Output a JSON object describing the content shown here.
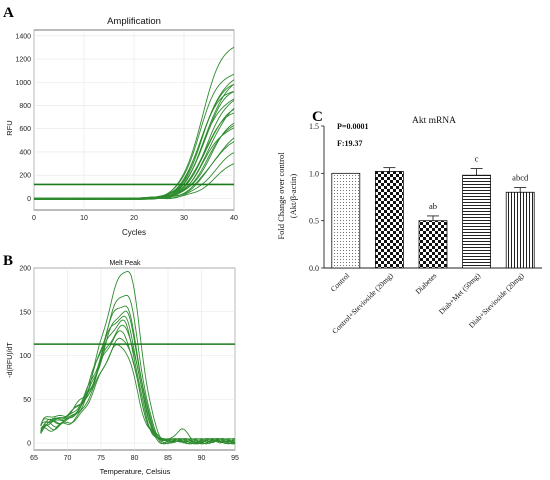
{
  "panels": {
    "A": {
      "letter": "A",
      "title": "Amplification",
      "xlabel": "Cycles",
      "ylabel": "RFU",
      "xticks": [
        "0",
        "10",
        "20",
        "30",
        "40"
      ],
      "yticks": [
        "0",
        "200",
        "400",
        "600",
        "800",
        "1000",
        "1200",
        "1400"
      ]
    },
    "B": {
      "letter": "B",
      "title": "Melt Peak",
      "xlabel": "Temperature, Celsius",
      "ylabel": "-d(RFU)/dT",
      "xticks": [
        "65",
        "70",
        "75",
        "80",
        "85",
        "90",
        "95"
      ],
      "yticks": [
        "0",
        "50",
        "100",
        "150",
        "200"
      ]
    },
    "C": {
      "letter": "C",
      "title": "Akt mRNA",
      "p_value": "P=0.0001",
      "f_value": "F:19.37",
      "ylabel_line1": "Fold Change over control",
      "ylabel_line2": "(Akt/β-actin)",
      "yticks": [
        "0.0",
        "0.5",
        "1.0",
        "1.5"
      ]
    }
  },
  "colors": {
    "trace": "#2e8b2e",
    "threshold": "#1a7a1a",
    "frame": "#555555"
  },
  "chart_data": [
    {
      "type": "line",
      "panel": "A",
      "title": "Amplification",
      "xlabel": "Cycles",
      "ylabel": "RFU",
      "xlim": [
        0,
        40
      ],
      "ylim": [
        -100,
        1450
      ],
      "threshold": 120,
      "series": [
        {
          "plateau": 1370,
          "midpoint": 33.5,
          "slope": 0.48
        },
        {
          "plateau": 1110,
          "midpoint": 33.0,
          "slope": 0.5
        },
        {
          "plateau": 1080,
          "midpoint": 33.8,
          "slope": 0.47
        },
        {
          "plateau": 1050,
          "midpoint": 34.2,
          "slope": 0.46
        },
        {
          "plateau": 1020,
          "midpoint": 33.4,
          "slope": 0.49
        },
        {
          "plateau": 980,
          "midpoint": 34.0,
          "slope": 0.47
        },
        {
          "plateau": 960,
          "midpoint": 33.1,
          "slope": 0.5
        },
        {
          "plateau": 930,
          "midpoint": 34.6,
          "slope": 0.45
        },
        {
          "plateau": 900,
          "midpoint": 33.6,
          "slope": 0.48
        },
        {
          "plateau": 860,
          "midpoint": 35.0,
          "slope": 0.44
        },
        {
          "plateau": 820,
          "midpoint": 34.3,
          "slope": 0.46
        },
        {
          "plateau": 780,
          "midpoint": 33.9,
          "slope": 0.47
        },
        {
          "plateau": 740,
          "midpoint": 35.3,
          "slope": 0.44
        },
        {
          "plateau": 700,
          "midpoint": 34.8,
          "slope": 0.45
        },
        {
          "plateau": 650,
          "midpoint": 34.0,
          "slope": 0.47
        },
        {
          "plateau": 600,
          "midpoint": 35.6,
          "slope": 0.43
        },
        {
          "plateau": 540,
          "midpoint": 35.0,
          "slope": 0.44
        },
        {
          "plateau": 470,
          "midpoint": 36.0,
          "slope": 0.42
        },
        {
          "plateau": 380,
          "midpoint": 36.5,
          "slope": 0.41
        }
      ]
    },
    {
      "type": "line",
      "panel": "B",
      "title": "Melt Peak",
      "xlabel": "Temperature, Celsius",
      "ylabel": "-d(RFU)/dT",
      "xlim": [
        65,
        95
      ],
      "ylim": [
        -8,
        200
      ],
      "threshold": 113,
      "series": [
        {
          "peak": 193,
          "peak_temp": 79.0,
          "width": 2.6,
          "shoulder": 32
        },
        {
          "peak": 165,
          "peak_temp": 78.8,
          "width": 2.6,
          "shoulder": 30
        },
        {
          "peak": 152,
          "peak_temp": 78.6,
          "width": 2.7,
          "shoulder": 28
        },
        {
          "peak": 145,
          "peak_temp": 78.7,
          "width": 2.6,
          "shoulder": 26
        },
        {
          "peak": 138,
          "peak_temp": 78.5,
          "width": 2.7,
          "shoulder": 27
        },
        {
          "peak": 133,
          "peak_temp": 78.4,
          "width": 2.6,
          "shoulder": 24
        },
        {
          "peak": 127,
          "peak_temp": 78.6,
          "width": 2.7,
          "shoulder": 25
        },
        {
          "peak": 120,
          "peak_temp": 78.3,
          "width": 2.7,
          "shoulder": 22
        },
        {
          "peak": 114,
          "peak_temp": 78.5,
          "width": 2.6,
          "shoulder": 20
        },
        {
          "peak": 106,
          "peak_temp": 78.2,
          "width": 2.7,
          "shoulder": 18
        }
      ]
    },
    {
      "type": "bar",
      "panel": "C",
      "title": "Akt mRNA",
      "ylabel": "Fold Change over control (Akt/β-actin)",
      "ylim": [
        0,
        1.5
      ],
      "categories": [
        "Control",
        "Control+Stevioside (20mg)",
        "Diabetes",
        "Diab+Met (50mg)",
        "Diab+Stevioside (20mg)"
      ],
      "values": [
        1.0,
        1.02,
        0.5,
        0.98,
        0.8
      ],
      "errors": [
        0.0,
        0.04,
        0.05,
        0.07,
        0.05
      ],
      "annotations": [
        "",
        "",
        "ab",
        "c",
        "abcd"
      ],
      "patterns": [
        "dots",
        "checker",
        "checker",
        "hlines",
        "vlines"
      ]
    }
  ]
}
